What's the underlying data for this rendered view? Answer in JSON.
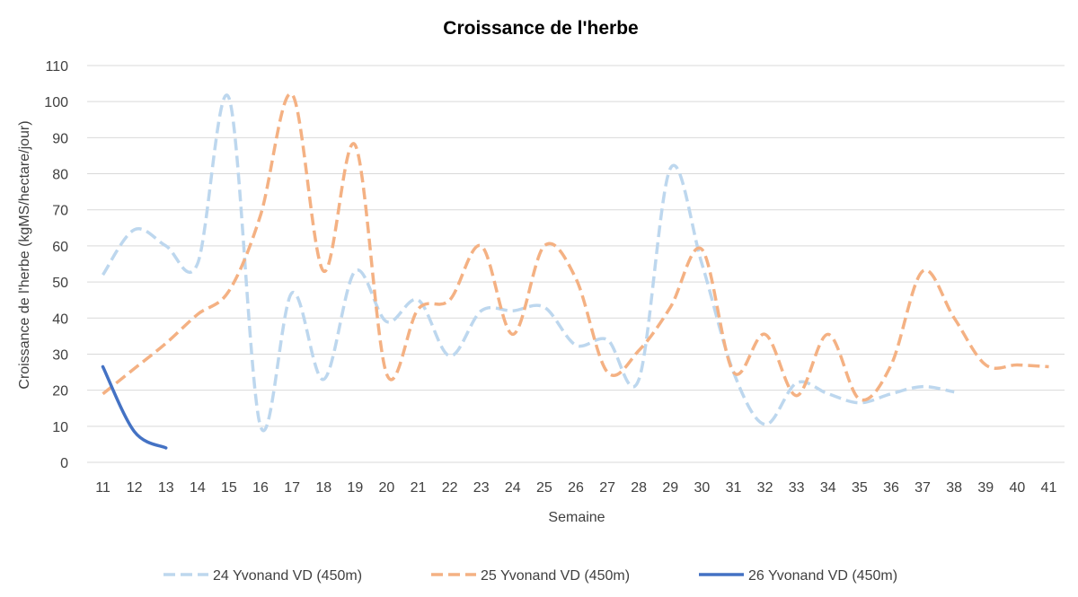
{
  "chart_data": {
    "type": "line",
    "title": "Croissance de l'herbe",
    "xlabel": "Semaine",
    "ylabel": "Croissance de l'herbe (kgMS/hectare/jour)",
    "x": [
      11,
      12,
      13,
      14,
      15,
      16,
      17,
      18,
      19,
      20,
      21,
      22,
      23,
      24,
      25,
      26,
      27,
      28,
      29,
      30,
      31,
      32,
      33,
      34,
      35,
      36,
      37,
      38,
      39,
      40,
      41
    ],
    "ylim": [
      0,
      110
    ],
    "yticks": [
      0,
      10,
      20,
      30,
      40,
      50,
      60,
      70,
      80,
      90,
      100,
      110
    ],
    "grid": true,
    "legend_position": "bottom",
    "series": [
      {
        "name": "24 Yvonand VD (450m)",
        "color": "#bdd7ee",
        "style": "dashed",
        "points": [
          [
            11,
            52
          ],
          [
            12,
            64.5
          ],
          [
            13,
            60
          ],
          [
            14,
            55
          ],
          [
            15,
            101
          ],
          [
            16,
            10
          ],
          [
            17,
            47
          ],
          [
            18,
            23
          ],
          [
            19,
            53
          ],
          [
            20,
            39
          ],
          [
            21,
            45
          ],
          [
            22,
            29.5
          ],
          [
            23,
            42
          ],
          [
            24,
            42
          ],
          [
            25,
            43
          ],
          [
            26,
            32.5
          ],
          [
            27,
            34
          ],
          [
            28,
            23
          ],
          [
            29,
            81.5
          ],
          [
            30,
            55
          ],
          [
            31,
            25
          ],
          [
            32,
            10.5
          ],
          [
            33,
            22
          ],
          [
            34,
            19
          ],
          [
            35,
            16.5
          ],
          [
            36,
            19
          ],
          [
            37,
            21
          ],
          [
            38,
            19.5
          ]
        ]
      },
      {
        "name": "25 Yvonand VD (450m)",
        "color": "#f4b183",
        "style": "dashed",
        "points": [
          [
            11,
            19
          ],
          [
            12,
            26
          ],
          [
            13,
            33
          ],
          [
            14,
            41
          ],
          [
            15,
            47.5
          ],
          [
            16,
            68.5
          ],
          [
            17,
            102
          ],
          [
            18,
            53
          ],
          [
            19,
            88
          ],
          [
            20,
            24.5
          ],
          [
            21,
            42.5
          ],
          [
            22,
            45
          ],
          [
            23,
            60
          ],
          [
            24,
            35.5
          ],
          [
            25,
            60
          ],
          [
            26,
            51
          ],
          [
            27,
            25
          ],
          [
            28,
            31
          ],
          [
            29,
            43
          ],
          [
            30,
            59
          ],
          [
            31,
            25
          ],
          [
            32,
            35.5
          ],
          [
            33,
            18.5
          ],
          [
            34,
            35.5
          ],
          [
            35,
            17.5
          ],
          [
            36,
            27
          ],
          [
            37,
            53
          ],
          [
            38,
            40
          ],
          [
            39,
            27
          ],
          [
            40,
            27
          ],
          [
            41,
            26.5
          ]
        ]
      },
      {
        "name": "26 Yvonand VD (450m)",
        "color": "#4472c4",
        "style": "solid",
        "points": [
          [
            11,
            26.5
          ],
          [
            12,
            8.5
          ],
          [
            13,
            4
          ]
        ]
      }
    ]
  }
}
